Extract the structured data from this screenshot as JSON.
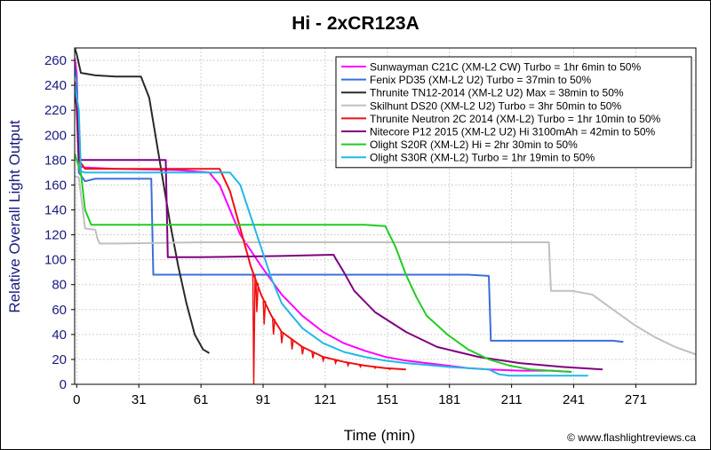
{
  "chart_data": {
    "type": "line",
    "title": "Hi - 2xCR123A",
    "xlabel": "Time (min)",
    "ylabel": "Relative Overall Light Output",
    "credit": "© www.flashlightreviews.ca",
    "xlim": [
      0,
      300
    ],
    "ylim": [
      0,
      270
    ],
    "xticks": [
      1,
      31,
      61,
      91,
      121,
      151,
      181,
      211,
      241,
      271
    ],
    "xtick_labels": [
      "0",
      "31",
      "61",
      "91",
      "121",
      "151",
      "181",
      "211",
      "241",
      "271"
    ],
    "yticks": [
      0,
      20,
      40,
      60,
      80,
      100,
      120,
      140,
      160,
      180,
      200,
      220,
      240,
      260
    ],
    "grid": true,
    "legend_position": "top-right",
    "series": [
      {
        "name": "Sunwayman C21C (XM-L2 CW) Turbo = 1hr 6min to 50%",
        "color": "#ff00ff",
        "points": [
          [
            0,
            262
          ],
          [
            1,
            250
          ],
          [
            2,
            175
          ],
          [
            5,
            174
          ],
          [
            20,
            173
          ],
          [
            50,
            172
          ],
          [
            65,
            170
          ],
          [
            70,
            160
          ],
          [
            75,
            140
          ],
          [
            80,
            120
          ],
          [
            90,
            95
          ],
          [
            100,
            72
          ],
          [
            110,
            55
          ],
          [
            120,
            42
          ],
          [
            130,
            33
          ],
          [
            140,
            27
          ],
          [
            150,
            22
          ],
          [
            160,
            19
          ],
          [
            170,
            17
          ],
          [
            180,
            15
          ],
          [
            190,
            13
          ],
          [
            200,
            12
          ],
          [
            215,
            11
          ],
          [
            230,
            11
          ],
          [
            240,
            10
          ]
        ]
      },
      {
        "name": "Fenix PD35 (XM-L2 U2) Turbo = 37min to 50%",
        "color": "#3b6fd6",
        "points": [
          [
            0,
            255
          ],
          [
            1,
            245
          ],
          [
            2,
            170
          ],
          [
            5,
            163
          ],
          [
            10,
            165
          ],
          [
            37,
            165
          ],
          [
            38,
            88
          ],
          [
            60,
            88
          ],
          [
            120,
            88
          ],
          [
            190,
            88
          ],
          [
            200,
            87
          ],
          [
            201,
            35
          ],
          [
            230,
            35
          ],
          [
            260,
            35
          ],
          [
            265,
            34
          ]
        ]
      },
      {
        "name": "Thrunite TN12-2014 (XM-L2 U2) Max = 38min to 50%",
        "color": "#2a2a2a",
        "points": [
          [
            0,
            270
          ],
          [
            1,
            265
          ],
          [
            3,
            250
          ],
          [
            10,
            248
          ],
          [
            20,
            247
          ],
          [
            30,
            247
          ],
          [
            32,
            247
          ],
          [
            36,
            230
          ],
          [
            40,
            190
          ],
          [
            43,
            160
          ],
          [
            46,
            130
          ],
          [
            50,
            95
          ],
          [
            54,
            65
          ],
          [
            58,
            40
          ],
          [
            62,
            28
          ],
          [
            65,
            25
          ]
        ]
      },
      {
        "name": "Skilhunt DS20 (XM-L2 U2) Turbo = 3hr 50min to 50%",
        "color": "#c0c0c0",
        "points": [
          [
            0,
            167
          ],
          [
            2,
            166
          ],
          [
            5,
            125
          ],
          [
            10,
            124
          ],
          [
            11,
            117
          ],
          [
            12,
            113
          ],
          [
            20,
            113
          ],
          [
            60,
            114
          ],
          [
            120,
            114
          ],
          [
            180,
            114
          ],
          [
            220,
            114
          ],
          [
            229,
            114
          ],
          [
            230,
            75
          ],
          [
            240,
            75
          ],
          [
            250,
            72
          ],
          [
            260,
            60
          ],
          [
            270,
            48
          ],
          [
            280,
            38
          ],
          [
            290,
            30
          ],
          [
            300,
            24
          ],
          [
            305,
            22
          ]
        ]
      },
      {
        "name": "Thrunite Neutron 2C 2014 (XM-L2) Turbo = 1hr 10min to 50%",
        "color": "#ee1111",
        "points": [
          [
            0,
            243
          ],
          [
            1,
            220
          ],
          [
            2,
            180
          ],
          [
            5,
            173
          ],
          [
            40,
            173
          ],
          [
            70,
            173
          ],
          [
            75,
            155
          ],
          [
            80,
            125
          ],
          [
            85,
            95
          ],
          [
            90,
            72
          ],
          [
            95,
            55
          ],
          [
            100,
            42
          ],
          [
            110,
            30
          ],
          [
            120,
            22
          ],
          [
            130,
            18
          ],
          [
            140,
            15
          ],
          [
            150,
            13
          ],
          [
            160,
            12
          ]
        ],
        "spikes": [
          [
            86.5,
            0
          ],
          [
            88,
            58
          ],
          [
            91.5,
            48
          ],
          [
            96,
            40
          ],
          [
            100,
            33
          ],
          [
            105,
            28
          ],
          [
            110,
            24
          ],
          [
            115,
            21
          ],
          [
            120,
            19
          ],
          [
            126,
            17
          ],
          [
            132,
            15
          ],
          [
            138,
            14
          ],
          [
            145,
            13
          ],
          [
            152,
            12
          ]
        ]
      },
      {
        "name": "Nitecore P12 2015 (XM-L2 U2) Hi 3100mAh = 42min to 50%",
        "color": "#800080",
        "points": [
          [
            0,
            230
          ],
          [
            1,
            225
          ],
          [
            2,
            180
          ],
          [
            10,
            180
          ],
          [
            30,
            180
          ],
          [
            44,
            180
          ],
          [
            45,
            102
          ],
          [
            60,
            102
          ],
          [
            100,
            103
          ],
          [
            125,
            104
          ],
          [
            126,
            101
          ],
          [
            130,
            90
          ],
          [
            135,
            75
          ],
          [
            145,
            58
          ],
          [
            160,
            42
          ],
          [
            175,
            30
          ],
          [
            195,
            22
          ],
          [
            215,
            17
          ],
          [
            235,
            14
          ],
          [
            255,
            12
          ]
        ]
      },
      {
        "name": "Olight S20R (XM-L2) Hi = 2hr 30min to 50%",
        "color": "#22cc22",
        "points": [
          [
            0,
            185
          ],
          [
            1,
            180
          ],
          [
            3,
            170
          ],
          [
            5,
            140
          ],
          [
            8,
            128
          ],
          [
            10,
            128
          ],
          [
            60,
            128
          ],
          [
            100,
            128
          ],
          [
            140,
            128
          ],
          [
            150,
            127
          ],
          [
            155,
            110
          ],
          [
            160,
            88
          ],
          [
            165,
            70
          ],
          [
            170,
            55
          ],
          [
            180,
            40
          ],
          [
            190,
            28
          ],
          [
            200,
            20
          ],
          [
            210,
            15
          ],
          [
            220,
            12
          ],
          [
            240,
            10
          ]
        ]
      },
      {
        "name": "Olight S30R (XM-L2) Turbo = 1hr 19min to 50%",
        "color": "#22b8e8",
        "points": [
          [
            0,
            240
          ],
          [
            2,
            220
          ],
          [
            3,
            171
          ],
          [
            5,
            170
          ],
          [
            20,
            170
          ],
          [
            40,
            170
          ],
          [
            50,
            170
          ],
          [
            75,
            170
          ],
          [
            80,
            160
          ],
          [
            85,
            135
          ],
          [
            90,
            110
          ],
          [
            95,
            85
          ],
          [
            100,
            65
          ],
          [
            110,
            45
          ],
          [
            120,
            33
          ],
          [
            130,
            26
          ],
          [
            140,
            22
          ],
          [
            150,
            19
          ],
          [
            160,
            17
          ],
          [
            180,
            14
          ],
          [
            190,
            13
          ],
          [
            200,
            12
          ],
          [
            205,
            8
          ],
          [
            210,
            7
          ],
          [
            225,
            7
          ],
          [
            240,
            7
          ],
          [
            248,
            7
          ]
        ]
      }
    ]
  }
}
